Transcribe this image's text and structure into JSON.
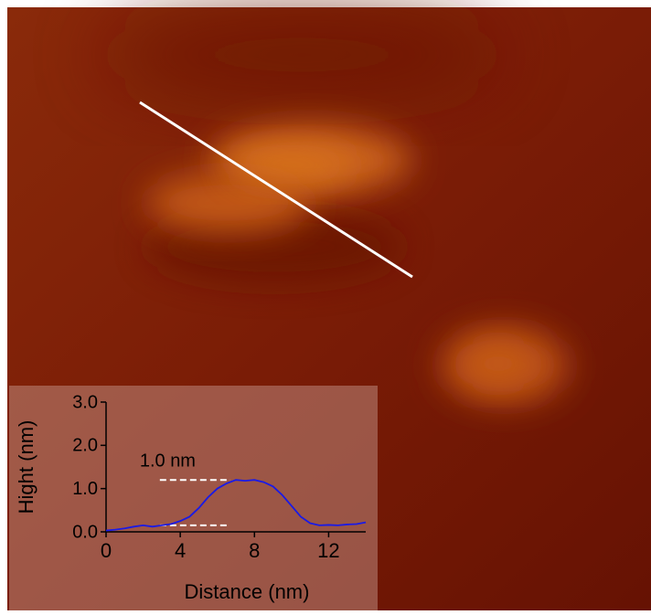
{
  "chart_data": {
    "type": "line",
    "xlabel": "Distance (nm)",
    "ylabel": "Hight (nm)",
    "annotation": "1.0 nm",
    "x": [
      0,
      0.5,
      1,
      1.5,
      2,
      2.5,
      3,
      3.5,
      4,
      4.5,
      5,
      5.5,
      6,
      6.5,
      7,
      7.5,
      8,
      8.5,
      9,
      9.5,
      10,
      10.5,
      11,
      11.5,
      12,
      12.5,
      13,
      13.5,
      14
    ],
    "series": [
      {
        "color": "#1a1ae6",
        "values": [
          0.03,
          0.05,
          0.08,
          0.12,
          0.15,
          0.12,
          0.15,
          0.18,
          0.25,
          0.35,
          0.55,
          0.8,
          1.0,
          1.12,
          1.2,
          1.18,
          1.2,
          1.15,
          1.05,
          0.85,
          0.6,
          0.35,
          0.2,
          0.15,
          0.16,
          0.15,
          0.17,
          0.18,
          0.22
        ]
      }
    ],
    "reference_lines": [
      {
        "y": 1.2,
        "x": [
          2.9,
          6.7
        ]
      },
      {
        "y": 0.15,
        "x": [
          2.9,
          6.6
        ]
      }
    ],
    "xlim": [
      0,
      14
    ],
    "ylim": [
      0,
      3
    ],
    "xticks": [
      0,
      4,
      8,
      12
    ],
    "yticks": [
      {
        "value": 0,
        "label": "0.0"
      },
      {
        "value": 1,
        "label": "1.0"
      },
      {
        "value": 2,
        "label": "2.0"
      },
      {
        "value": 3,
        "label": "3.0"
      }
    ]
  }
}
